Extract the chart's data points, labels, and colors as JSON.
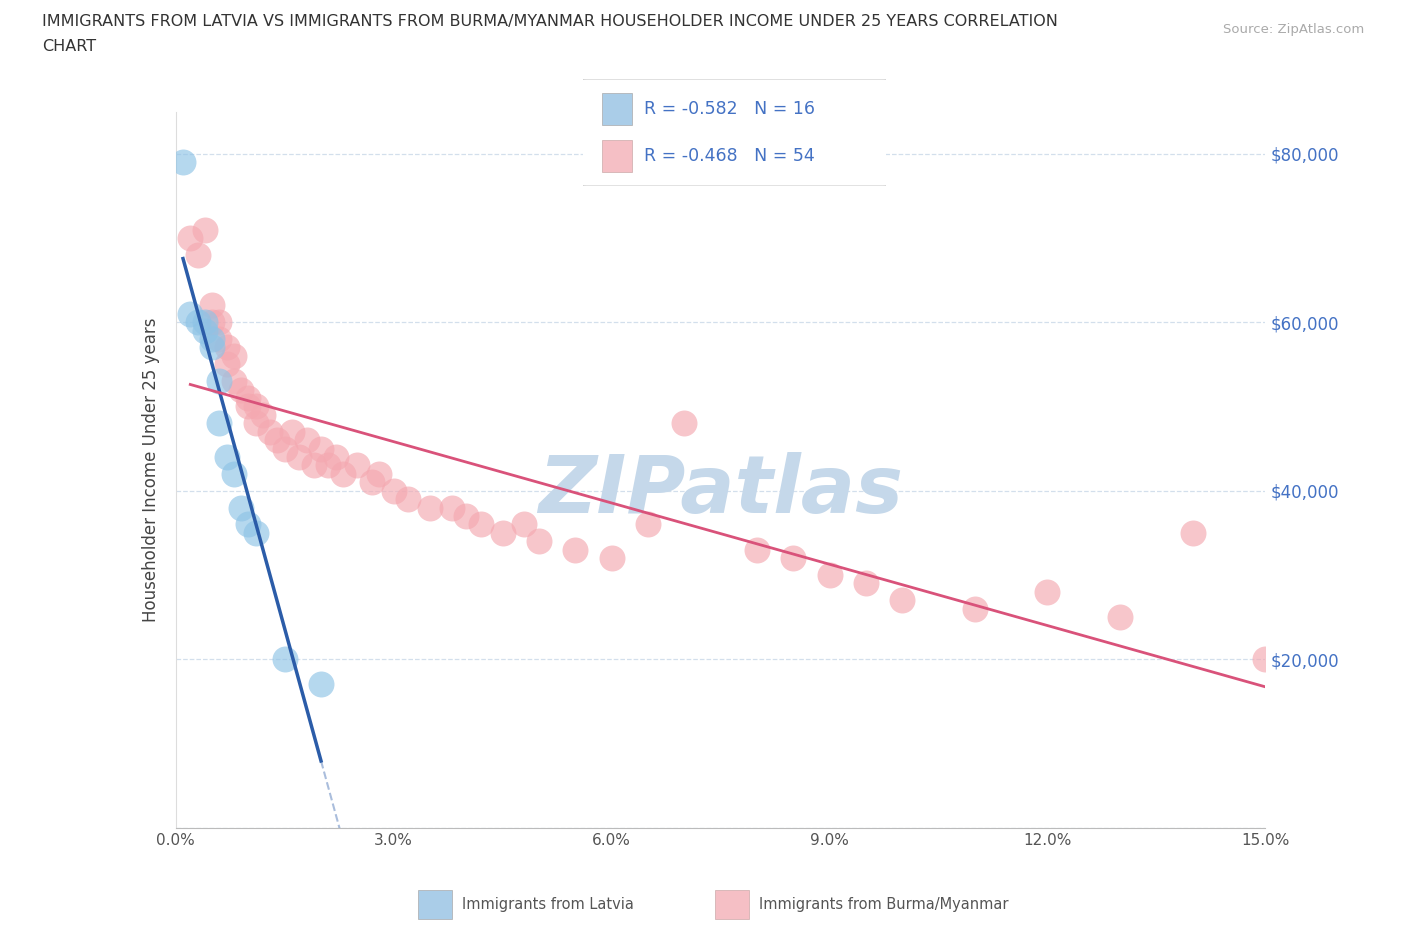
{
  "title_line1": "IMMIGRANTS FROM LATVIA VS IMMIGRANTS FROM BURMA/MYANMAR HOUSEHOLDER INCOME UNDER 25 YEARS CORRELATION",
  "title_line2": "CHART",
  "source": "Source: ZipAtlas.com",
  "ylabel": "Householder Income Under 25 years",
  "xlim": [
    0.0,
    0.15
  ],
  "ylim": [
    0,
    85000
  ],
  "xtick_vals": [
    0.0,
    0.03,
    0.06,
    0.09,
    0.12,
    0.15
  ],
  "xtick_labels": [
    "0.0%",
    "3.0%",
    "6.0%",
    "9.0%",
    "12.0%",
    "15.0%"
  ],
  "ytick_vals": [
    0,
    20000,
    40000,
    60000,
    80000
  ],
  "ytick_right_labels": [
    "",
    "$20,000",
    "$40,000",
    "$60,000",
    "$80,000"
  ],
  "latvia_color": "#8ec3e6",
  "burma_color": "#f4a8b0",
  "latvia_line_color": "#2b5ca8",
  "burma_line_color": "#d9527a",
  "legend_box_color_latvia": "#aacde8",
  "legend_box_color_burma": "#f5bfc5",
  "r_latvia": -0.582,
  "n_latvia": 16,
  "r_burma": -0.468,
  "n_burma": 54,
  "watermark": "ZIPatlas",
  "watermark_color": "#c5d8ea",
  "right_label_color": "#4472c4",
  "grid_color": "#c8d8e8",
  "latvia_x": [
    0.001,
    0.002,
    0.003,
    0.004,
    0.004,
    0.005,
    0.005,
    0.006,
    0.006,
    0.007,
    0.008,
    0.009,
    0.01,
    0.011,
    0.015,
    0.02
  ],
  "latvia_y": [
    79000,
    61000,
    60000,
    60000,
    59000,
    58000,
    57000,
    53000,
    48000,
    44000,
    42000,
    38000,
    36000,
    35000,
    20000,
    17000
  ],
  "burma_x": [
    0.002,
    0.003,
    0.004,
    0.005,
    0.005,
    0.006,
    0.006,
    0.007,
    0.007,
    0.008,
    0.008,
    0.009,
    0.01,
    0.01,
    0.011,
    0.011,
    0.012,
    0.013,
    0.014,
    0.015,
    0.016,
    0.017,
    0.018,
    0.019,
    0.02,
    0.021,
    0.022,
    0.023,
    0.025,
    0.027,
    0.028,
    0.03,
    0.032,
    0.035,
    0.038,
    0.04,
    0.042,
    0.045,
    0.048,
    0.05,
    0.055,
    0.06,
    0.065,
    0.07,
    0.08,
    0.085,
    0.09,
    0.095,
    0.1,
    0.11,
    0.12,
    0.13,
    0.14,
    0.15
  ],
  "burma_y": [
    70000,
    68000,
    71000,
    62000,
    60000,
    60000,
    58000,
    57000,
    55000,
    56000,
    53000,
    52000,
    51000,
    50000,
    50000,
    48000,
    49000,
    47000,
    46000,
    45000,
    47000,
    44000,
    46000,
    43000,
    45000,
    43000,
    44000,
    42000,
    43000,
    41000,
    42000,
    40000,
    39000,
    38000,
    38000,
    37000,
    36000,
    35000,
    36000,
    34000,
    33000,
    32000,
    36000,
    48000,
    33000,
    32000,
    30000,
    29000,
    27000,
    26000,
    28000,
    25000,
    35000,
    20000
  ]
}
